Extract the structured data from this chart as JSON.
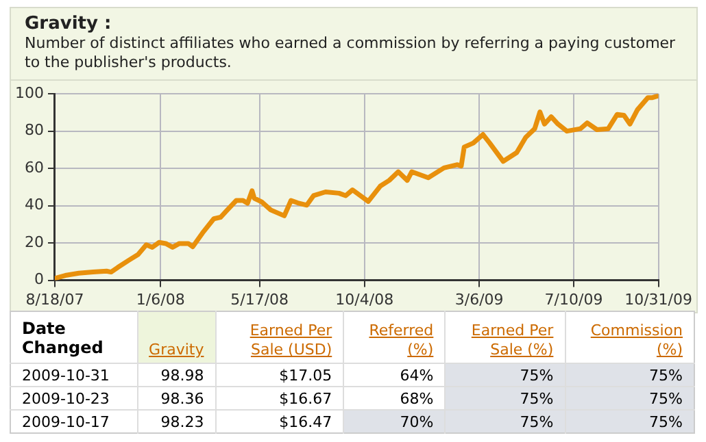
{
  "chart_data": [
    {
      "type": "line",
      "title": "Gravity :",
      "subtitle": "Number of distinct affiliates who earned a commission by referring a paying customer to the publisher's products.",
      "x": [
        "2007-08-18",
        "2007-09-01",
        "2007-09-19",
        "2007-10-08",
        "2007-10-26",
        "2007-11-01",
        "2007-11-10",
        "2007-11-25",
        "2007-12-07",
        "2007-12-18",
        "2007-12-26",
        "2008-01-04",
        "2008-01-13",
        "2008-01-22",
        "2008-01-31",
        "2008-02-12",
        "2008-02-18",
        "2008-03-02",
        "2008-03-17",
        "2008-03-26",
        "2008-04-04",
        "2008-04-16",
        "2008-04-25",
        "2008-05-01",
        "2008-05-07",
        "2008-05-10",
        "2008-05-20",
        "2008-06-01",
        "2008-06-19",
        "2008-06-28",
        "2008-07-07",
        "2008-07-19",
        "2008-07-28",
        "2008-08-13",
        "2008-08-31",
        "2008-09-09",
        "2008-09-18",
        "2008-10-09",
        "2008-10-25",
        "2008-11-06",
        "2008-11-18",
        "2008-11-30",
        "2008-12-06",
        "2008-12-28",
        "2009-01-18",
        "2009-02-05",
        "2009-02-10",
        "2009-02-14",
        "2009-02-26",
        "2009-03-11",
        "2009-03-20",
        "2009-04-07",
        "2009-04-25",
        "2009-05-07",
        "2009-05-19",
        "2009-05-26",
        "2009-06-01",
        "2009-06-10",
        "2009-06-19",
        "2009-07-01",
        "2009-07-19",
        "2009-07-28",
        "2009-08-10",
        "2009-08-25",
        "2009-09-06",
        "2009-09-15",
        "2009-09-23",
        "2009-10-03",
        "2009-10-17",
        "2009-10-23",
        "2009-10-31"
      ],
      "series": [
        {
          "color": "#e8900c",
          "values": [
            1,
            2.6,
            3.8,
            4.4,
            4.9,
            4.4,
            6.9,
            10.8,
            13.8,
            19,
            17.7,
            20.3,
            19.7,
            17.7,
            19.7,
            19.7,
            18,
            25.4,
            33,
            33.8,
            37.7,
            42.8,
            42.8,
            41.3,
            48,
            44,
            42,
            37.7,
            34.6,
            42.8,
            41.5,
            40.3,
            45.4,
            47.4,
            46.7,
            45.4,
            48.5,
            42.3,
            50.5,
            53.6,
            58.2,
            53.6,
            58.2,
            55,
            60.3,
            62,
            61.3,
            71.5,
            73.6,
            78.2,
            73.6,
            63.8,
            68.5,
            76.7,
            81.3,
            90.3,
            83.8,
            87.7,
            83.8,
            80,
            81.3,
            84.4,
            80.8,
            81.3,
            89,
            88.5,
            83.8,
            91.5,
            98,
            98,
            99
          ]
        }
      ],
      "xlim": [
        "2007-08-18",
        "2009-10-31"
      ],
      "xticks": [
        {
          "value": "2007-08-18",
          "label": "8/18/07"
        },
        {
          "value": "2008-01-06",
          "label": "1/6/08"
        },
        {
          "value": "2008-05-17",
          "label": "5/17/08"
        },
        {
          "value": "2008-10-04",
          "label": "10/4/08"
        },
        {
          "value": "2009-03-06",
          "label": "3/6/09"
        },
        {
          "value": "2009-07-10",
          "label": "7/10/09"
        },
        {
          "value": "2009-10-31",
          "label": "10/31/09"
        }
      ],
      "ylim": [
        0,
        100
      ],
      "yticks": [
        0,
        20,
        40,
        60,
        80,
        100
      ],
      "grid": true,
      "legend": false,
      "marker": "none",
      "line_style": "solid"
    },
    {
      "type": "other",
      "ylabel": "Date Changed",
      "categories": [
        "Gravity",
        "Earned Per Sale (USD)",
        "Referred (%)",
        "Earned Per Sale (%)",
        "Commission (%)"
      ],
      "series": [
        {
          "name": "2009-10-31",
          "values": [
            98.98,
            17.05,
            64,
            75,
            75
          ],
          "value_labels": [
            "98.98",
            "$17.05",
            "64%",
            "75%",
            "75%"
          ],
          "colors": [
            "#ffffff",
            "#ffffff",
            "#ffffff",
            "#dfe2e8",
            "#dfe2e8"
          ]
        },
        {
          "name": "2009-10-23",
          "values": [
            98.36,
            16.67,
            68,
            75,
            75
          ],
          "value_labels": [
            "98.36",
            "$16.67",
            "68%",
            "75%",
            "75%"
          ],
          "colors": [
            "#ffffff",
            "#ffffff",
            "#ffffff",
            "#dfe2e8",
            "#dfe2e8"
          ]
        },
        {
          "name": "2009-10-17",
          "values": [
            98.23,
            16.47,
            70,
            75,
            75
          ],
          "value_labels": [
            "98.23",
            "$16.47",
            "70%",
            "75%",
            "75%"
          ],
          "colors": [
            "#ffffff",
            "#ffffff",
            "#dfe2e8",
            "#dfe2e8",
            "#dfe2e8"
          ]
        }
      ]
    }
  ]
}
